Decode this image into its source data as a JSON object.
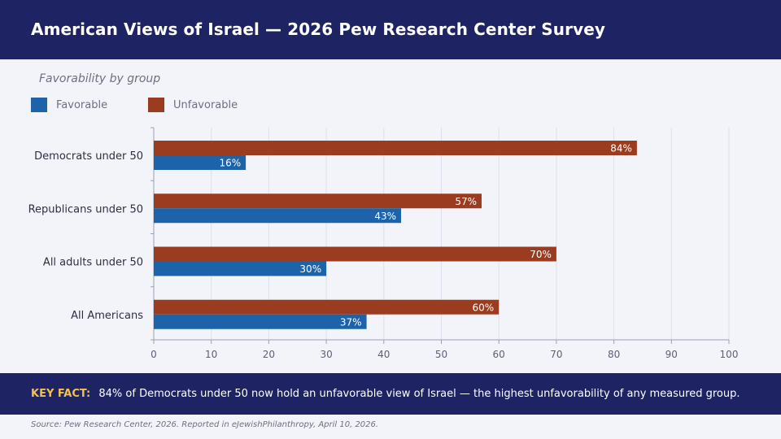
{
  "header": {
    "title": "American Views of Israel — 2026 Pew Research Center Survey"
  },
  "chart_data": {
    "type": "bar",
    "orientation": "horizontal",
    "subtitle": "Favorability by group",
    "categories": [
      "Democrats under 50",
      "Republicans under 50",
      "All adults under 50",
      "All Americans"
    ],
    "series": [
      {
        "name": "Unfavorable",
        "values": [
          84,
          57,
          70,
          60
        ],
        "color": "#9b3c20"
      },
      {
        "name": "Favorable",
        "values": [
          16,
          43,
          30,
          37
        ],
        "color": "#1c63aa"
      }
    ],
    "xlim": [
      0,
      100
    ],
    "xticks": [
      0,
      10,
      20,
      30,
      40,
      50,
      60,
      70,
      80,
      90,
      100
    ],
    "value_suffix": "%",
    "grid": "vertical",
    "legend_position": "top-left"
  },
  "legend": {
    "items": [
      {
        "label": "Favorable",
        "color": "#1c63aa"
      },
      {
        "label": "Unfavorable",
        "color": "#9b3c20"
      }
    ]
  },
  "key_fact": {
    "label": "KEY FACT:",
    "text": "84% of Democrats under 50 now hold an unfavorable view of Israel — the highest unfavorability of any measured group."
  },
  "source": "Source: Pew Research Center, 2026. Reported in eJewishPhilanthropy, April 10, 2026."
}
